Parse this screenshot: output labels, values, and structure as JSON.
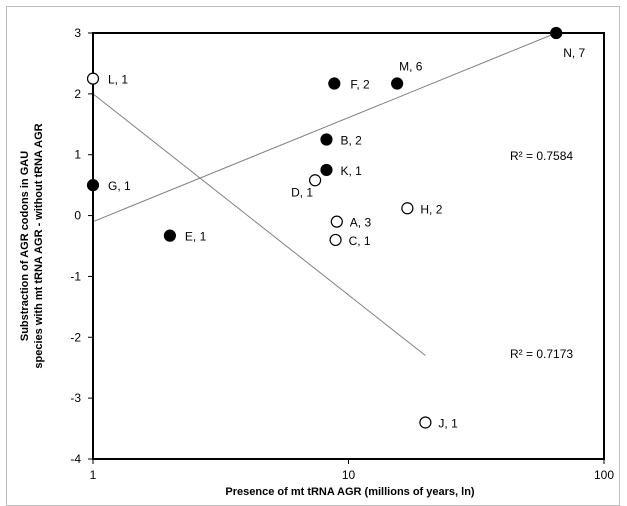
{
  "chart_data": {
    "type": "scatter",
    "title": "",
    "xlabel": "Presence of mt tRNA AGR (millions of years, ln)",
    "ylabel_line1": "Substraction of AGR codons in GAU",
    "ylabel_line2": "species with mt tRNA AGR  - without tRNA AGR",
    "x_scale": "log",
    "xlim": [
      1,
      100
    ],
    "ylim": [
      -4,
      3
    ],
    "x_ticks": [
      {
        "value": 1,
        "label": "1"
      },
      {
        "value": 10,
        "label": "10"
      },
      {
        "value": 100,
        "label": "100"
      }
    ],
    "y_ticks": [
      {
        "value": 3,
        "label": "3"
      },
      {
        "value": 2,
        "label": "2"
      },
      {
        "value": 1,
        "label": "1"
      },
      {
        "value": 0,
        "label": "0"
      },
      {
        "value": -1,
        "label": "-1"
      },
      {
        "value": -2,
        "label": "-2"
      },
      {
        "value": -3,
        "label": "-3"
      },
      {
        "value": -4,
        "label": "-4"
      }
    ],
    "grid": false,
    "points": [
      {
        "label": "L, 1",
        "x": 1.0,
        "y": 2.25,
        "filled": false
      },
      {
        "label": "G, 1",
        "x": 1.0,
        "y": 0.5,
        "filled": true
      },
      {
        "label": "E, 1",
        "x": 2.0,
        "y": -0.33,
        "filled": true
      },
      {
        "label": "F, 2",
        "x": 8.8,
        "y": 2.17,
        "filled": true
      },
      {
        "label": "M, 6",
        "x": 15.5,
        "y": 2.17,
        "filled": true
      },
      {
        "label": "B, 2",
        "x": 8.2,
        "y": 1.25,
        "filled": true
      },
      {
        "label": "K, 1",
        "x": 8.2,
        "y": 0.75,
        "filled": true
      },
      {
        "label": "D, 1",
        "x": 7.4,
        "y": 0.58,
        "filled": false
      },
      {
        "label": "A, 3",
        "x": 9.0,
        "y": -0.1,
        "filled": false
      },
      {
        "label": "C, 1",
        "x": 8.9,
        "y": -0.4,
        "filled": false
      },
      {
        "label": "H, 2",
        "x": 17.0,
        "y": 0.12,
        "filled": false
      },
      {
        "label": "J, 1",
        "x": 20.0,
        "y": -3.4,
        "filled": false
      },
      {
        "label": "N, 7",
        "x": 65.0,
        "y": 3.0,
        "filled": true
      }
    ],
    "trendlines": [
      {
        "type": "log",
        "x": [
          1,
          65
        ],
        "y": [
          -0.1,
          3.0
        ],
        "r2_label": "R² = 0.7584"
      },
      {
        "type": "log",
        "x": [
          1,
          20
        ],
        "y": [
          2.0,
          -2.3
        ],
        "r2_label": "R² = 0.7173"
      }
    ]
  }
}
